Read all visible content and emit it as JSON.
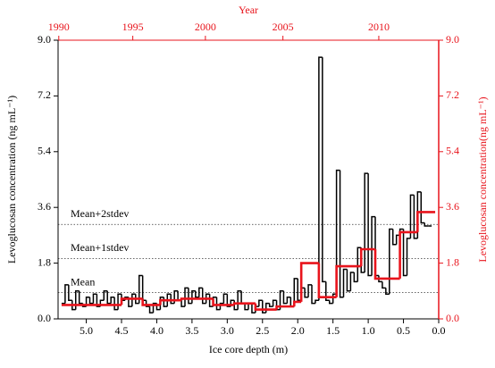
{
  "chart_data": {
    "type": "step",
    "xlabel": "Ice core depth (m)",
    "ylabel": "Levoglucosan concentration (ng mL⁻¹)",
    "y2label": "Levoglucosan concentration(ng mL⁻¹)",
    "x2label": "Year",
    "xlim": [
      5.4,
      0
    ],
    "xticks": [
      {
        "value": 5,
        "label": "5.0"
      },
      4.5,
      {
        "value": 4,
        "label": "4.0"
      },
      3.5,
      {
        "value": 3,
        "label": "3.0"
      },
      2.5,
      {
        "value": 2,
        "label": "2.0"
      },
      1.5,
      {
        "value": 1,
        "label": "1.0"
      },
      0.5,
      {
        "value": 0,
        "label": "0.0"
      }
    ],
    "x2ticks": [
      {
        "value": 5.39,
        "label": "1990"
      },
      {
        "value": 4.34,
        "label": "1995"
      },
      {
        "value": 3.31,
        "label": "2000"
      },
      {
        "value": 2.21,
        "label": "2005"
      },
      {
        "value": 0.85,
        "label": "2010"
      }
    ],
    "ylim": [
      0,
      9
    ],
    "yticks": [
      {
        "value": 0,
        "label": "0.0"
      },
      1.8,
      3.6,
      5.4,
      7.2,
      {
        "value": 9,
        "label": "9.0"
      }
    ],
    "y2lim": [
      0,
      9
    ],
    "y2ticks": [
      {
        "value": 0,
        "label": "0.0"
      },
      1.8,
      3.6,
      5.4,
      7.2,
      {
        "value": 9,
        "label": "9.0"
      }
    ],
    "reference_lines": [
      {
        "label": "Mean",
        "value": 0.85
      },
      {
        "label": "Mean+1stdev",
        "value": 1.95
      },
      {
        "label": "Mean+2stdev",
        "value": 3.05
      }
    ],
    "series": [
      {
        "color": "#000000",
        "x": [
          5.35,
          5.3,
          5.25,
          5.2,
          5.15,
          5.1,
          5.05,
          5.0,
          4.95,
          4.9,
          4.85,
          4.8,
          4.75,
          4.7,
          4.65,
          4.6,
          4.55,
          4.5,
          4.45,
          4.4,
          4.35,
          4.3,
          4.25,
          4.2,
          4.15,
          4.1,
          4.05,
          4.0,
          3.95,
          3.9,
          3.85,
          3.8,
          3.75,
          3.7,
          3.65,
          3.6,
          3.55,
          3.5,
          3.45,
          3.4,
          3.35,
          3.3,
          3.25,
          3.2,
          3.15,
          3.1,
          3.05,
          3.0,
          2.95,
          2.9,
          2.85,
          2.8,
          2.75,
          2.7,
          2.65,
          2.6,
          2.55,
          2.5,
          2.45,
          2.4,
          2.35,
          2.3,
          2.25,
          2.2,
          2.15,
          2.1,
          2.05,
          2.0,
          1.95,
          1.9,
          1.85,
          1.8,
          1.75,
          1.7,
          1.65,
          1.6,
          1.55,
          1.5,
          1.45,
          1.4,
          1.35,
          1.3,
          1.25,
          1.2,
          1.15,
          1.1,
          1.05,
          1.0,
          0.95,
          0.9,
          0.85,
          0.8,
          0.75,
          0.7,
          0.65,
          0.6,
          0.55,
          0.5,
          0.45,
          0.4,
          0.35,
          0.3,
          0.25,
          0.2,
          0.15
        ],
        "values": [
          0.5,
          1.1,
          0.6,
          0.3,
          0.9,
          0.5,
          0.4,
          0.7,
          0.5,
          0.8,
          0.4,
          0.6,
          0.9,
          0.5,
          0.7,
          0.3,
          0.8,
          0.6,
          0.7,
          0.4,
          0.8,
          0.5,
          1.4,
          0.6,
          0.4,
          0.2,
          0.5,
          0.3,
          0.7,
          0.4,
          0.8,
          0.5,
          0.9,
          0.6,
          0.4,
          1.0,
          0.5,
          0.9,
          0.7,
          1.0,
          0.5,
          0.8,
          0.4,
          0.7,
          0.3,
          0.5,
          0.8,
          0.4,
          0.6,
          0.3,
          0.9,
          0.5,
          0.3,
          0.5,
          0.2,
          0.4,
          0.6,
          0.2,
          0.5,
          0.4,
          0.6,
          0.3,
          0.9,
          0.5,
          0.7,
          0.4,
          1.3,
          0.6,
          1.0,
          0.7,
          1.1,
          0.5,
          0.6,
          8.45,
          1.2,
          0.6,
          0.5,
          0.8,
          4.8,
          0.7,
          1.6,
          0.9,
          1.5,
          1.2,
          2.3,
          1.5,
          4.7,
          1.4,
          3.3,
          1.4,
          1.2,
          1.0,
          0.8,
          2.9,
          2.4,
          2.7,
          2.9,
          1.4,
          2.6,
          4.0,
          2.6,
          4.1,
          3.1,
          3.0,
          3.0
        ]
      },
      {
        "color": "#e8141c",
        "x": [
          5.35,
          4.5,
          4.2,
          3.95,
          3.65,
          3.2,
          2.9,
          2.6,
          2.3,
          2.05,
          1.95,
          1.7,
          1.45,
          1.1,
          0.9,
          0.55,
          0.3
        ],
        "values": [
          0.45,
          0.65,
          0.45,
          0.6,
          0.65,
          0.45,
          0.5,
          0.3,
          0.4,
          0.55,
          1.8,
          0.7,
          1.7,
          2.25,
          1.3,
          2.8,
          3.45
        ]
      }
    ]
  }
}
